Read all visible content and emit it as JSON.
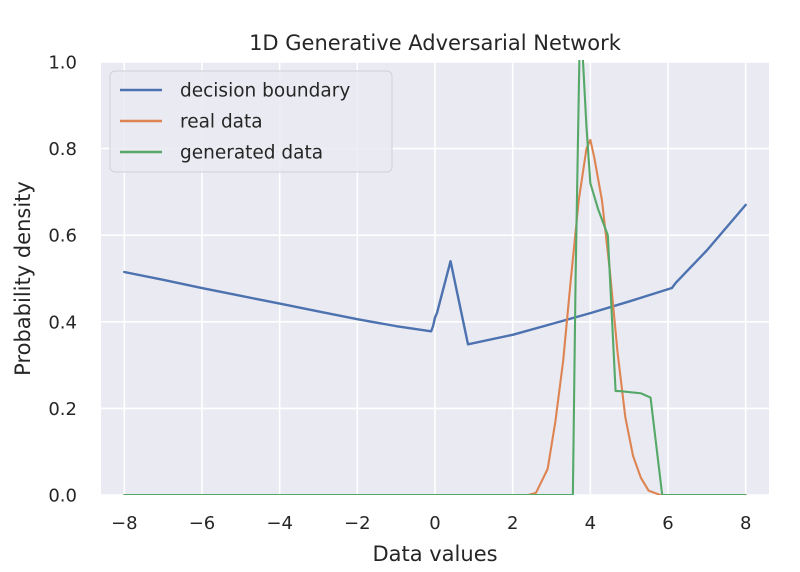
{
  "chart_data": {
    "type": "line",
    "title": "1D Generative Adversarial Network",
    "xlabel": "Data values",
    "ylabel": "Probability density",
    "xlim": [
      -8.6,
      8.6
    ],
    "ylim": [
      0,
      1.0
    ],
    "xticks": [
      -8,
      -6,
      -4,
      -2,
      0,
      2,
      4,
      6,
      8
    ],
    "xtick_labels": [
      "−8",
      "−6",
      "−4",
      "−2",
      "0",
      "2",
      "4",
      "6",
      "8"
    ],
    "yticks": [
      0,
      0.2,
      0.4,
      0.6,
      0.8,
      1.0
    ],
    "ytick_labels": [
      "0.0",
      "0.2",
      "0.4",
      "0.6",
      "0.8",
      "1.0"
    ],
    "grid": true,
    "legend_position": "top-left",
    "background": "#eaeaf2",
    "series": [
      {
        "name": "decision boundary",
        "color": "#4c72b0",
        "x": [
          -8,
          -7,
          -6,
          -5,
          -4,
          -3,
          -2,
          -1,
          -0.1,
          -0.05,
          0.0,
          0.05,
          0.4,
          0.85,
          2,
          3,
          4,
          5,
          6.1,
          6.2,
          7,
          8
        ],
        "y": [
          0.515,
          0.497,
          0.478,
          0.46,
          0.442,
          0.424,
          0.406,
          0.39,
          0.378,
          0.39,
          0.41,
          0.42,
          0.54,
          0.348,
          0.37,
          0.395,
          0.42,
          0.447,
          0.478,
          0.49,
          0.565,
          0.67
        ]
      },
      {
        "name": "real data",
        "color": "#dd8452",
        "x": [
          -8,
          2.4,
          2.6,
          2.9,
          3.1,
          3.3,
          3.5,
          3.7,
          3.9,
          4.0,
          4.1,
          4.3,
          4.5,
          4.7,
          4.9,
          5.1,
          5.3,
          5.5,
          5.8,
          8
        ],
        "y": [
          0,
          0,
          0.005,
          0.06,
          0.17,
          0.31,
          0.5,
          0.68,
          0.8,
          0.82,
          0.78,
          0.68,
          0.52,
          0.33,
          0.18,
          0.09,
          0.04,
          0.01,
          0,
          0
        ]
      },
      {
        "name": "generated data",
        "color": "#55a868",
        "x": [
          -8,
          3.55,
          3.62,
          3.72,
          3.8,
          3.9,
          4.0,
          4.2,
          4.45,
          4.65,
          4.75,
          5.3,
          5.55,
          5.85,
          5.9,
          8
        ],
        "y": [
          0,
          0,
          0.5,
          1.02,
          1.02,
          0.85,
          0.72,
          0.66,
          0.6,
          0.24,
          0.24,
          0.235,
          0.225,
          0.0,
          0,
          0
        ]
      }
    ]
  }
}
